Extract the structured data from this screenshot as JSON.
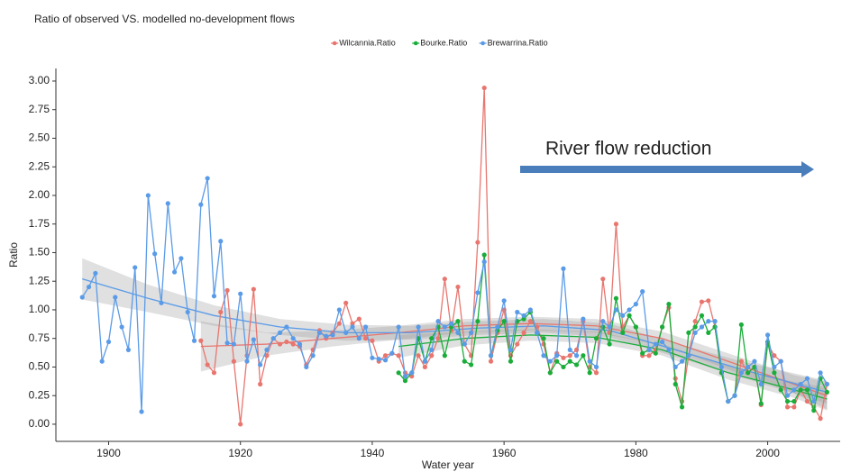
{
  "chart_data": {
    "type": "line",
    "title": "Ratio of observed VS. modelled no-development flows",
    "xlabel": "Water year",
    "ylabel": "Ratio",
    "annotation": "River flow reduction",
    "annotation_color": "#4a7ebb",
    "xlim": [
      1892,
      2011
    ],
    "ylim": [
      -0.15,
      3.11
    ],
    "xticks": [
      1900,
      1920,
      1940,
      1960,
      1980,
      2000
    ],
    "yticks": [
      {
        "value": 0,
        "label": "0.00"
      },
      {
        "value": 0.25,
        "label": "0.25"
      },
      {
        "value": 0.5,
        "label": "0.50"
      },
      {
        "value": 0.75,
        "label": "0.75"
      },
      {
        "value": 1,
        "label": "1.00"
      },
      {
        "value": 1.25,
        "label": "1.25"
      },
      {
        "value": 1.5,
        "label": "1.50"
      },
      {
        "value": 1.75,
        "label": "1.75"
      },
      {
        "value": 2,
        "label": "2.00"
      },
      {
        "value": 2.25,
        "label": "2.25"
      },
      {
        "value": 2.5,
        "label": "2.50"
      },
      {
        "value": 2.75,
        "label": "2.75"
      },
      {
        "value": 3,
        "label": "3.00"
      }
    ],
    "x": [
      1896,
      1897,
      1898,
      1899,
      1900,
      1901,
      1902,
      1903,
      1904,
      1905,
      1906,
      1907,
      1908,
      1909,
      1910,
      1911,
      1912,
      1913,
      1914,
      1915,
      1916,
      1917,
      1918,
      1919,
      1920,
      1921,
      1922,
      1923,
      1924,
      1925,
      1926,
      1927,
      1928,
      1929,
      1930,
      1931,
      1932,
      1933,
      1934,
      1935,
      1936,
      1937,
      1938,
      1939,
      1940,
      1941,
      1942,
      1943,
      1944,
      1945,
      1946,
      1947,
      1948,
      1949,
      1950,
      1951,
      1952,
      1953,
      1954,
      1955,
      1956,
      1957,
      1958,
      1959,
      1960,
      1961,
      1962,
      1963,
      1964,
      1965,
      1966,
      1967,
      1968,
      1969,
      1970,
      1971,
      1972,
      1973,
      1974,
      1975,
      1976,
      1977,
      1978,
      1979,
      1980,
      1981,
      1982,
      1983,
      1984,
      1985,
      1986,
      1987,
      1988,
      1989,
      1990,
      1991,
      1992,
      1993,
      1994,
      1995,
      1996,
      1997,
      1998,
      1999,
      2000,
      2001,
      2002,
      2003,
      2004,
      2005,
      2006,
      2007,
      2008,
      2009
    ],
    "series": [
      {
        "name": "Wilcannia.Ratio",
        "color": "#e8766f",
        "values": [
          null,
          null,
          null,
          null,
          null,
          null,
          null,
          null,
          null,
          null,
          null,
          null,
          null,
          null,
          null,
          null,
          null,
          null,
          0.73,
          0.52,
          0.45,
          0.98,
          1.17,
          0.55,
          0.0,
          0.6,
          1.18,
          0.35,
          0.6,
          0.75,
          0.7,
          0.72,
          0.7,
          0.68,
          0.52,
          0.65,
          0.82,
          0.75,
          0.8,
          0.88,
          1.06,
          0.88,
          0.92,
          0.75,
          0.73,
          0.55,
          0.6,
          0.62,
          0.6,
          0.45,
          0.42,
          0.6,
          0.5,
          0.6,
          0.75,
          1.27,
          0.82,
          1.2,
          0.7,
          0.6,
          1.59,
          2.94,
          0.55,
          0.8,
          1.0,
          0.6,
          0.7,
          0.8,
          0.9,
          0.85,
          0.7,
          0.45,
          0.62,
          0.58,
          0.6,
          0.65,
          0.9,
          0.5,
          0.45,
          1.27,
          0.8,
          1.75,
          0.85,
          0.95,
          0.85,
          0.6,
          0.6,
          0.65,
          0.85,
          1.02,
          0.4,
          0.2,
          0.6,
          0.9,
          1.07,
          1.08,
          0.85,
          0.45,
          0.2,
          0.25,
          0.55,
          0.45,
          0.5,
          0.17,
          0.7,
          0.6,
          0.55,
          0.15,
          0.15,
          0.3,
          0.2,
          0.15,
          0.05,
          0.35
        ],
        "trend_x": [
          1914,
          1924,
          1934,
          1944,
          1954,
          1964,
          1974,
          1984,
          1994,
          2004,
          2009
        ],
        "trend": [
          0.68,
          0.7,
          0.75,
          0.8,
          0.86,
          0.88,
          0.86,
          0.75,
          0.55,
          0.35,
          0.25
        ],
        "trend_lower": [
          0.46,
          0.6,
          0.68,
          0.74,
          0.8,
          0.82,
          0.8,
          0.69,
          0.48,
          0.27,
          0.13
        ],
        "trend_upper": [
          0.9,
          0.8,
          0.82,
          0.86,
          0.92,
          0.94,
          0.92,
          0.81,
          0.62,
          0.43,
          0.37
        ]
      },
      {
        "name": "Bourke.Ratio",
        "color": "#1aad3a",
        "values": [
          null,
          null,
          null,
          null,
          null,
          null,
          null,
          null,
          null,
          null,
          null,
          null,
          null,
          null,
          null,
          null,
          null,
          null,
          null,
          null,
          null,
          null,
          null,
          null,
          null,
          null,
          null,
          null,
          null,
          null,
          null,
          null,
          null,
          null,
          null,
          null,
          null,
          null,
          null,
          null,
          null,
          null,
          null,
          null,
          null,
          null,
          null,
          null,
          0.45,
          0.38,
          0.45,
          0.75,
          0.55,
          0.75,
          0.85,
          0.6,
          0.85,
          0.9,
          0.55,
          0.52,
          0.9,
          1.48,
          0.6,
          0.82,
          0.9,
          0.55,
          0.9,
          0.92,
          0.98,
          0.8,
          0.75,
          0.45,
          0.55,
          0.5,
          0.55,
          0.52,
          0.6,
          0.45,
          0.75,
          0.85,
          0.7,
          1.1,
          0.8,
          0.95,
          0.85,
          0.62,
          0.65,
          0.62,
          0.85,
          1.05,
          0.35,
          0.15,
          0.8,
          0.85,
          0.95,
          0.8,
          0.85,
          0.45,
          0.2,
          0.25,
          0.87,
          0.45,
          0.5,
          0.18,
          0.72,
          0.45,
          0.3,
          0.2,
          0.2,
          0.3,
          0.3,
          0.12,
          0.4,
          0.28
        ],
        "trend_x": [
          1944,
          1954,
          1964,
          1974,
          1984,
          1994,
          2004,
          2009
        ],
        "trend": [
          0.68,
          0.75,
          0.78,
          0.76,
          0.65,
          0.45,
          0.3,
          0.22
        ],
        "trend_lower": [
          0.58,
          0.69,
          0.73,
          0.71,
          0.6,
          0.39,
          0.23,
          0.12
        ],
        "trend_upper": [
          0.78,
          0.81,
          0.83,
          0.81,
          0.7,
          0.51,
          0.37,
          0.32
        ]
      },
      {
        "name": "Brewarrina.Ratio",
        "color": "#5a9be8",
        "values": [
          1.11,
          1.2,
          1.32,
          0.55,
          0.72,
          1.11,
          0.85,
          0.65,
          1.37,
          0.11,
          2.0,
          1.49,
          1.06,
          1.93,
          1.33,
          1.45,
          0.98,
          0.73,
          1.92,
          2.15,
          1.12,
          1.6,
          0.71,
          0.7,
          1.14,
          0.55,
          0.74,
          0.52,
          0.65,
          0.75,
          0.8,
          0.85,
          0.75,
          0.7,
          0.5,
          0.6,
          0.8,
          0.77,
          0.78,
          1.0,
          0.8,
          0.85,
          0.75,
          0.85,
          0.58,
          0.57,
          0.56,
          0.62,
          0.85,
          0.42,
          0.45,
          0.85,
          0.55,
          0.65,
          0.9,
          0.85,
          0.88,
          0.8,
          0.7,
          0.8,
          1.15,
          1.42,
          0.6,
          0.85,
          1.08,
          0.65,
          0.98,
          0.95,
          1.0,
          0.8,
          0.6,
          0.55,
          0.6,
          1.36,
          0.65,
          0.6,
          0.92,
          0.55,
          0.5,
          0.9,
          0.85,
          1.0,
          0.95,
          1.0,
          1.05,
          1.16,
          0.65,
          0.7,
          0.72,
          0.65,
          0.5,
          0.55,
          0.6,
          0.8,
          0.85,
          0.9,
          0.9,
          0.5,
          0.2,
          0.25,
          0.45,
          0.5,
          0.55,
          0.35,
          0.78,
          0.5,
          0.55,
          0.25,
          0.3,
          0.35,
          0.4,
          0.2,
          0.45,
          0.35
        ],
        "trend_x": [
          1896,
          1906,
          1916,
          1926,
          1936,
          1946,
          1956,
          1966,
          1976,
          1986,
          1996,
          2009
        ],
        "trend": [
          1.27,
          1.1,
          0.95,
          0.85,
          0.8,
          0.8,
          0.84,
          0.86,
          0.82,
          0.65,
          0.48,
          0.28
        ],
        "trend_lower": [
          1.09,
          0.98,
          0.86,
          0.78,
          0.73,
          0.74,
          0.78,
          0.8,
          0.76,
          0.59,
          0.41,
          0.18
        ],
        "trend_upper": [
          1.45,
          1.22,
          1.04,
          0.92,
          0.87,
          0.86,
          0.9,
          0.92,
          0.88,
          0.71,
          0.55,
          0.38
        ]
      }
    ]
  }
}
